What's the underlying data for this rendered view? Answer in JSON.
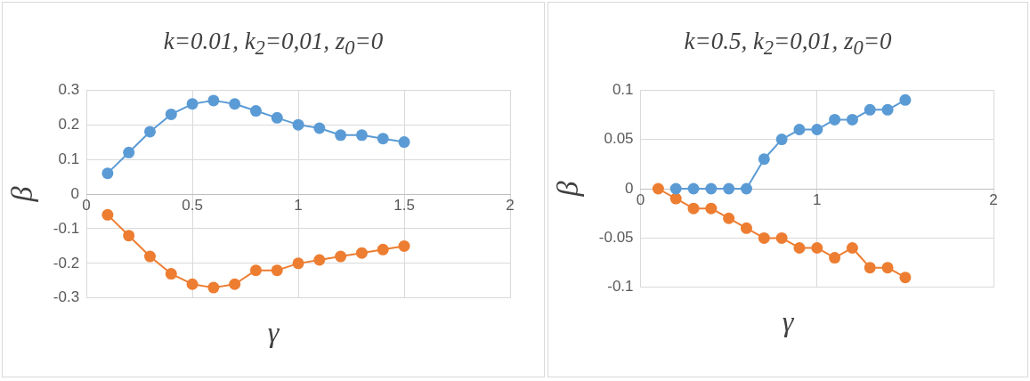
{
  "chart_data": [
    {
      "type": "line",
      "title": "k=0.01, k$_{2}$=0,01, z$_{0}$=0",
      "xlabel": "γ",
      "ylabel": "β",
      "xlim": [
        0,
        2
      ],
      "xticks": [
        0,
        0.5,
        1,
        1.5,
        2
      ],
      "ylim": [
        -0.3,
        0.3
      ],
      "yticks": [
        -0.3,
        -0.2,
        -0.1,
        0,
        0.1,
        0.2,
        0.3
      ],
      "grid": true,
      "marker": "circle",
      "line_style": "solid",
      "x": [
        0.1,
        0.2,
        0.3,
        0.4,
        0.5,
        0.6,
        0.7,
        0.8,
        0.9,
        1.0,
        1.1,
        1.2,
        1.3,
        1.4,
        1.5
      ],
      "series": [
        {
          "color": "#5b9bd5",
          "values": [
            0.06,
            0.12,
            0.18,
            0.23,
            0.26,
            0.27,
            0.26,
            0.24,
            0.22,
            0.2,
            0.19,
            0.17,
            0.17,
            0.16,
            0.15
          ]
        },
        {
          "color": "#ed7d31",
          "values": [
            -0.06,
            -0.12,
            -0.18,
            -0.23,
            -0.26,
            -0.27,
            -0.26,
            -0.22,
            -0.22,
            -0.2,
            -0.19,
            -0.18,
            -0.17,
            -0.16,
            -0.15
          ]
        }
      ]
    },
    {
      "type": "line",
      "title": "k=0.5, k$_{2}$=0,01, z$_{0}$=0",
      "xlabel": "γ",
      "ylabel": "β",
      "xlim": [
        0,
        2
      ],
      "xticks": [
        0,
        1,
        2
      ],
      "ylim": [
        -0.1,
        0.1
      ],
      "yticks": [
        -0.1,
        -0.05,
        0,
        0.05,
        0.1
      ],
      "grid": true,
      "marker": "circle",
      "line_style": "solid",
      "x": [
        0.1,
        0.2,
        0.3,
        0.4,
        0.5,
        0.6,
        0.7,
        0.8,
        0.9,
        1.0,
        1.1,
        1.2,
        1.3,
        1.4,
        1.5
      ],
      "series": [
        {
          "color": "#5b9bd5",
          "values": [
            null,
            0,
            0,
            0,
            0,
            0,
            0.03,
            0.05,
            0.06,
            0.06,
            0.07,
            0.07,
            0.08,
            0.08,
            0.09
          ]
        },
        {
          "color": "#ed7d31",
          "values": [
            0,
            -0.01,
            -0.02,
            -0.02,
            -0.03,
            -0.04,
            -0.05,
            -0.05,
            -0.06,
            -0.06,
            -0.07,
            -0.06,
            -0.08,
            -0.08,
            -0.09
          ]
        }
      ]
    }
  ]
}
